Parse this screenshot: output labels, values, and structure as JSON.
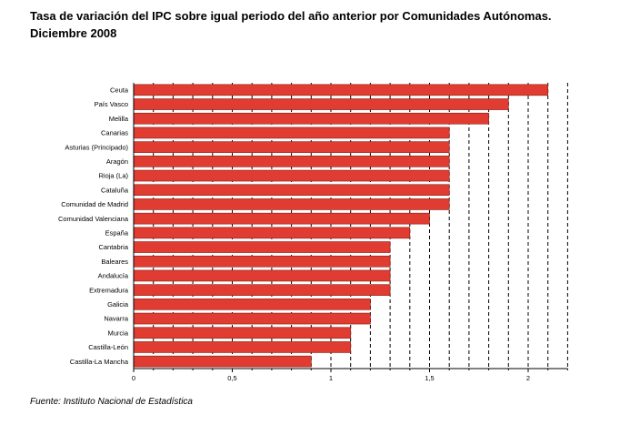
{
  "title_line1": "Tasa de variación del IPC sobre igual periodo del año anterior por Comunidades Autónomas.",
  "title_line2": "Diciembre 2008",
  "source": "Fuente: Instituto Nacional de Estadística",
  "chart_data": {
    "type": "bar",
    "orientation": "horizontal",
    "title": "Tasa de variación del IPC sobre igual periodo del año anterior por Comunidades Autónomas. Diciembre 2008",
    "categories": [
      "Ceuta",
      "País Vasco",
      "Melilla",
      "Canarias",
      "Asturias (Principado)",
      "Aragón",
      "Rioja (La)",
      "Cataluña",
      "Comunidad de Madrid",
      "Comunidad Valenciana",
      "España",
      "Cantabria",
      "Baleares",
      "Andalucía",
      "Extremadura",
      "Galicia",
      "Navarra",
      "Murcia",
      "Castilla-León",
      "Castilla-La Mancha"
    ],
    "values": [
      2.1,
      1.9,
      1.8,
      1.6,
      1.6,
      1.6,
      1.6,
      1.6,
      1.6,
      1.5,
      1.4,
      1.3,
      1.3,
      1.3,
      1.3,
      1.2,
      1.2,
      1.1,
      1.1,
      0.9
    ],
    "xlim": [
      0,
      2.2
    ],
    "xticks": [
      0,
      0.5,
      1,
      1.5,
      2
    ],
    "xtick_labels": [
      "0",
      "0,5",
      "1",
      "1,5",
      "2"
    ],
    "gridlines": "vertical dashed at every 0.1",
    "bar_color": "#e03c31",
    "bar_border": "#8b1a12"
  }
}
